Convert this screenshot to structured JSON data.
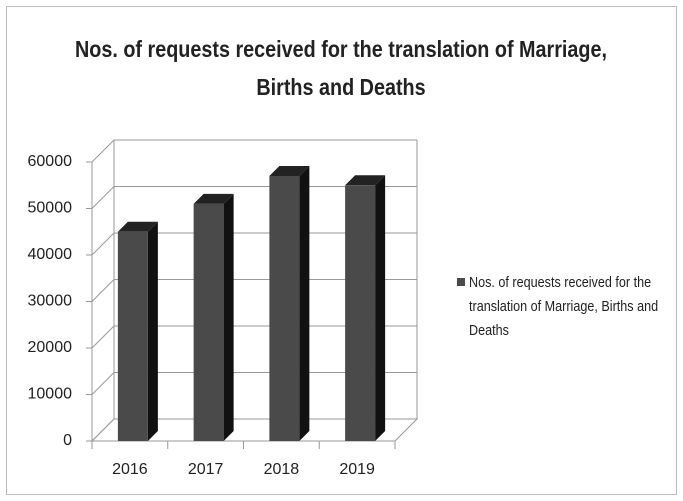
{
  "chart_data": {
    "type": "bar3d",
    "title": "Nos. of requests received for the translation of Marriage, Births and Deaths",
    "categories": [
      "2016",
      "2017",
      "2018",
      "2019"
    ],
    "series": [
      {
        "name": "Nos. of requests received for the translation of Marriage, Births and Deaths",
        "color": "#4a4a4a",
        "values": [
          45000,
          51000,
          57000,
          55000
        ]
      }
    ],
    "ylim": [
      0,
      60000
    ],
    "yticks": [
      0,
      10000,
      20000,
      30000,
      40000,
      50000,
      60000
    ],
    "grid": true,
    "legend": "right"
  }
}
